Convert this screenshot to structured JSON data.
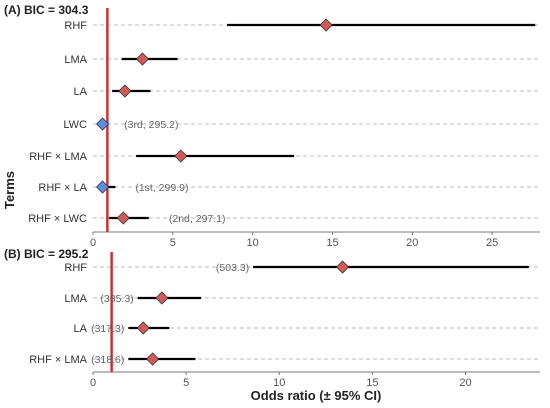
{
  "colors": {
    "ref_line": "#cc2a2a",
    "ci_line": "#000000",
    "grid": "#bbbbbb",
    "axis": "#777777",
    "marker_red": "#d45a5a",
    "marker_blue": "#5b8fe0",
    "marker_edge": "#333333"
  },
  "x_axis_title": "Odds ratio (± 95% CI)",
  "y_axis_title": "Terms",
  "chart_data": [
    {
      "type": "forest",
      "title": "(A) BIC = 304.3",
      "xlim": [
        0,
        28
      ],
      "ticks": [
        "0",
        "5",
        "10",
        "15",
        "20",
        "25"
      ],
      "tick_values": [
        0,
        5,
        10,
        15,
        20,
        25
      ],
      "reference_line": 0.9,
      "rows": [
        {
          "term": "RHF",
          "or": 14.6,
          "lo": 8.4,
          "hi": 27.7,
          "annotation": "",
          "marker_color": "red"
        },
        {
          "term": "LMA",
          "or": 3.1,
          "lo": 1.8,
          "hi": 5.3,
          "annotation": "",
          "marker_color": "red"
        },
        {
          "term": "LA",
          "or": 2.0,
          "lo": 1.2,
          "hi": 3.6,
          "annotation": "",
          "marker_color": "red"
        },
        {
          "term": "LWC",
          "or": 0.6,
          "lo": 0.5,
          "hi": 0.7,
          "annotation": "(3rd, 295.2)",
          "marker_color": "blue"
        },
        {
          "term": "RHF × LMA",
          "or": 5.5,
          "lo": 2.7,
          "hi": 12.6,
          "annotation": "",
          "marker_color": "red"
        },
        {
          "term": "RHF × LA",
          "or": 0.6,
          "lo": 0.4,
          "hi": 1.4,
          "annotation": "(1st, 299.9)",
          "marker_color": "blue"
        },
        {
          "term": "RHF × LWC",
          "or": 1.9,
          "lo": 1.0,
          "hi": 3.5,
          "annotation": "(2nd, 297.1)",
          "marker_color": "red"
        }
      ]
    },
    {
      "type": "forest",
      "title": "(B) BIC = 295.2",
      "xlim": [
        0,
        24
      ],
      "ticks": [
        "0",
        "5",
        "10",
        "15",
        "20"
      ],
      "tick_values": [
        0,
        5,
        10,
        15,
        20
      ],
      "reference_line": 1.0,
      "rows": [
        {
          "term": "RHF",
          "or": 13.4,
          "lo": 8.6,
          "hi": 23.4,
          "annotation": "(503.3)",
          "marker_color": "red"
        },
        {
          "term": "LMA",
          "or": 3.7,
          "lo": 2.4,
          "hi": 5.8,
          "annotation": "(335.3)",
          "marker_color": "red"
        },
        {
          "term": "LA",
          "or": 2.7,
          "lo": 1.9,
          "hi": 4.1,
          "annotation": "(317.3)",
          "marker_color": "red"
        },
        {
          "term": "RHF × LMA",
          "or": 3.2,
          "lo": 1.9,
          "hi": 5.5,
          "annotation": "(318.6)",
          "marker_color": "red"
        }
      ]
    }
  ]
}
